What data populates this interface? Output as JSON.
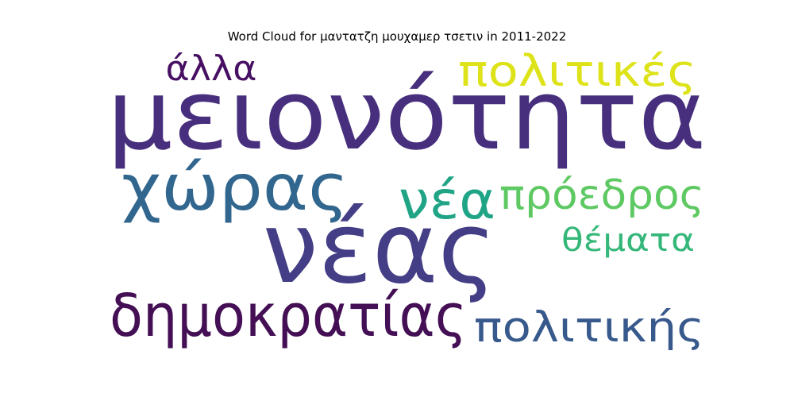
{
  "title": "Word Cloud for μαντατζη μουχαμερ τσετιν in 2011-2022",
  "words": [
    {
      "id": "meionotita",
      "text": "μειονότητα",
      "color": "#472f7d"
    },
    {
      "id": "neas",
      "text": "νέας",
      "color": "#433e85"
    },
    {
      "id": "choras",
      "text": "χώρας",
      "color": "#31668e"
    },
    {
      "id": "dimokratias",
      "text": "δημοκρατίας",
      "color": "#440f54"
    },
    {
      "id": "politikes",
      "text": "πολιτικές",
      "color": "#dde318"
    },
    {
      "id": "alla",
      "text": "άλλα",
      "color": "#471063"
    },
    {
      "id": "nea",
      "text": "νέα",
      "color": "#20a486"
    },
    {
      "id": "proedros",
      "text": "πρόεδρος",
      "color": "#5ec962"
    },
    {
      "id": "themata",
      "text": "θέματα",
      "color": "#35b779"
    },
    {
      "id": "politikis",
      "text": "πολιτικής",
      "color": "#38598c"
    }
  ]
}
